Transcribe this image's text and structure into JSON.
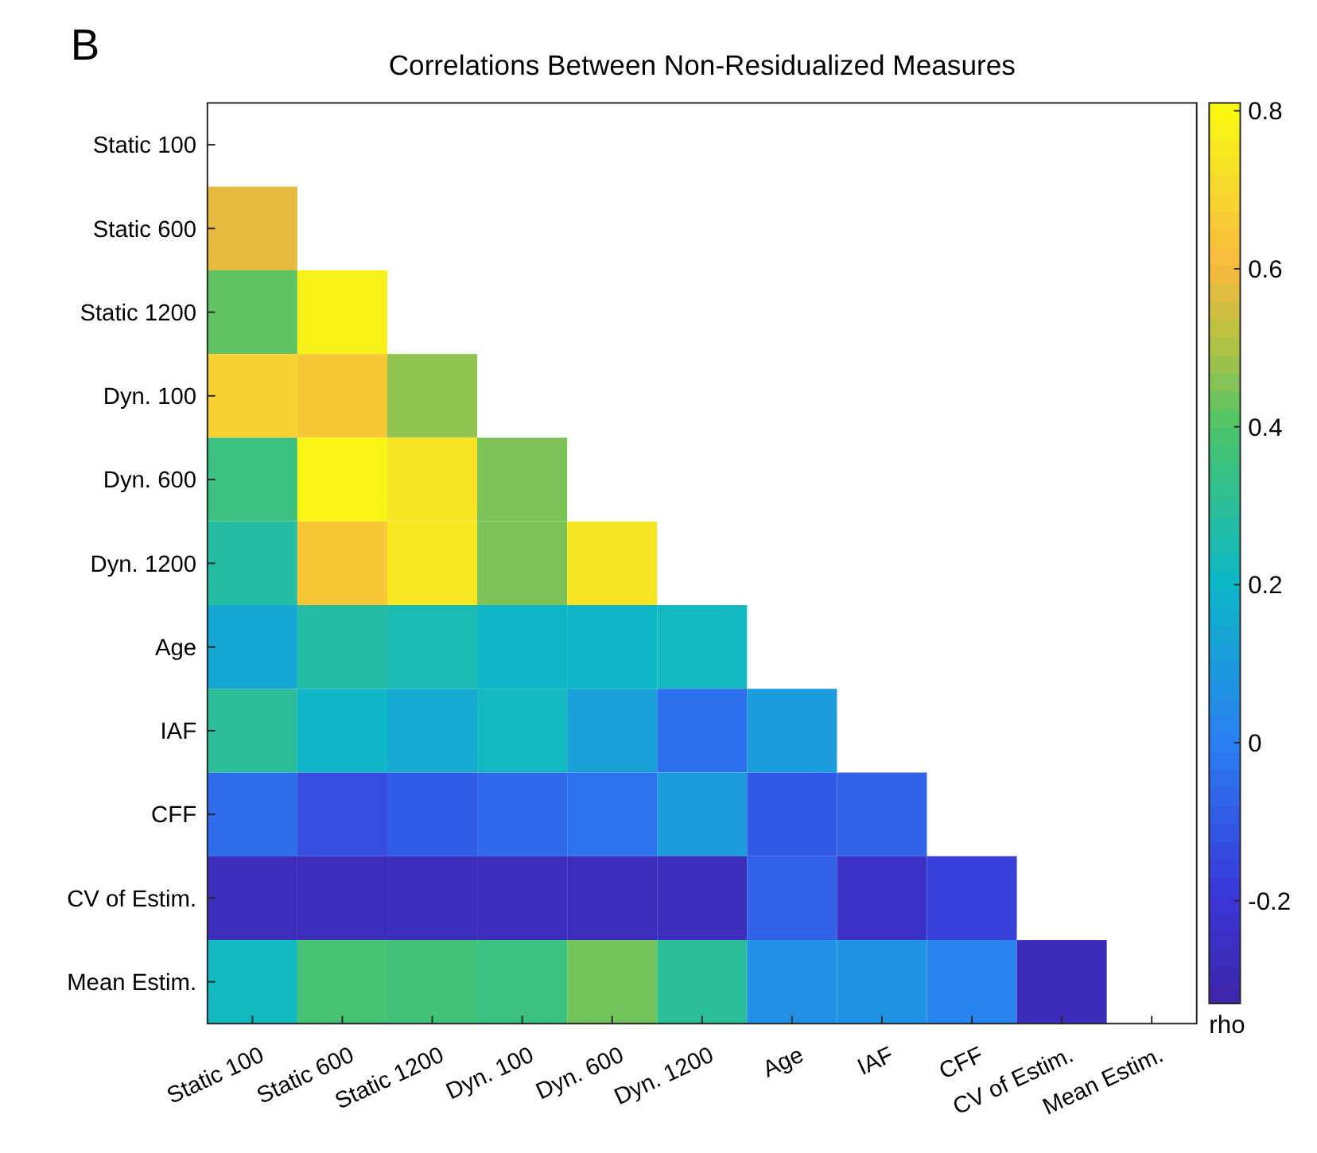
{
  "chart_data": {
    "type": "heatmap",
    "title": "Correlations Between Non-Residualized Measures",
    "annotations": [
      "B"
    ],
    "clabel": "rho",
    "categories": [
      "Static 100",
      "Static 600",
      "Static 1200",
      "Dyn. 100",
      "Dyn. 600",
      "Dyn. 1200",
      "Age",
      "IAF",
      "CFF",
      "CV of Estim.",
      "Mean Estim."
    ],
    "y_categories": [
      "Static 100",
      "Static 600",
      "Static 1200",
      "Dyn. 100",
      "Dyn. 600",
      "Dyn. 1200",
      "Age",
      "IAF",
      "CFF",
      "CV of Estim.",
      "Mean Estim."
    ],
    "cells": [
      [
        null,
        null,
        null,
        null,
        null,
        null,
        null,
        null,
        null,
        null,
        null
      ],
      [
        0.58,
        null,
        null,
        null,
        null,
        null,
        null,
        null,
        null,
        null,
        null
      ],
      [
        0.42,
        0.78,
        null,
        null,
        null,
        null,
        null,
        null,
        null,
        null,
        null
      ],
      [
        0.68,
        0.65,
        0.47,
        null,
        null,
        null,
        null,
        null,
        null,
        null,
        null
      ],
      [
        0.35,
        0.79,
        0.74,
        0.45,
        null,
        null,
        null,
        null,
        null,
        null,
        null
      ],
      [
        0.28,
        0.65,
        0.75,
        0.45,
        0.74,
        null,
        null,
        null,
        null,
        null,
        null
      ],
      [
        0.14,
        0.28,
        0.25,
        0.2,
        0.2,
        0.22,
        null,
        null,
        null,
        null,
        null
      ],
      [
        0.3,
        0.2,
        0.15,
        0.22,
        0.12,
        -0.04,
        0.1,
        null,
        null,
        null,
        null
      ],
      [
        -0.05,
        -0.13,
        -0.09,
        -0.06,
        -0.03,
        0.1,
        -0.1,
        -0.08,
        null,
        null,
        null
      ],
      [
        -0.27,
        -0.27,
        -0.27,
        -0.27,
        -0.27,
        -0.27,
        -0.08,
        -0.24,
        -0.17,
        null,
        null
      ],
      [
        0.22,
        0.38,
        0.37,
        0.35,
        0.44,
        0.3,
        0.06,
        0.07,
        0.02,
        -0.28,
        null
      ]
    ],
    "clim": [
      -0.33,
      0.81
    ],
    "cticks": [
      {
        "value": -0.2,
        "label": "-0.2"
      },
      0,
      0.2,
      0.4,
      0.6,
      0.8
    ]
  }
}
